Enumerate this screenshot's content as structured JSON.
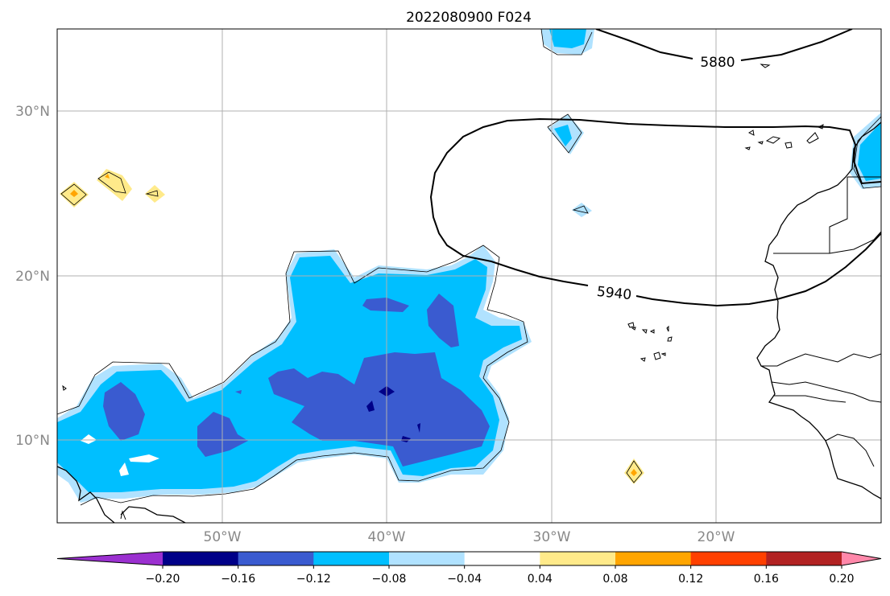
{
  "title": "2022080900 F024",
  "axes": {
    "lat_ticks": [
      "30°N",
      "20°N",
      "10°N"
    ],
    "lon_ticks": [
      "50°W",
      "40°W",
      "30°W",
      "20°W"
    ]
  },
  "contour_labels": [
    "5880",
    "5940"
  ],
  "colorbar": {
    "tick_labels": [
      "−0.20",
      "−0.16",
      "−0.12",
      "−0.08",
      "−0.04",
      "0.04",
      "0.08",
      "0.12",
      "0.16",
      "0.20"
    ],
    "colors": [
      "#9b30d0",
      "#000088",
      "#3a5bd0",
      "#00bfff",
      "#b0e2ff",
      "#ffffff",
      "#ffea8a",
      "#ffa500",
      "#ff4000",
      "#b22222",
      "#ff88aa"
    ]
  },
  "colors": {
    "negative_light": "#b0e2ff",
    "negative_mid": "#00bfff",
    "negative_strong": "#3a5bd0",
    "negative_extreme": "#000088",
    "positive_light": "#ffea8a",
    "positive_mid": "#ffa500",
    "grid": "#b0b0b0"
  },
  "chart_data": {
    "type": "heatmap",
    "title": "2022080900 F024",
    "lon_range": [
      -60,
      -10
    ],
    "lat_range": [
      5,
      35
    ],
    "grid": true,
    "levels": [
      -0.2,
      -0.16,
      -0.12,
      -0.08,
      -0.04,
      0.04,
      0.08,
      0.12,
      0.16,
      0.2
    ],
    "height_contours": [
      5880,
      5940
    ]
  }
}
